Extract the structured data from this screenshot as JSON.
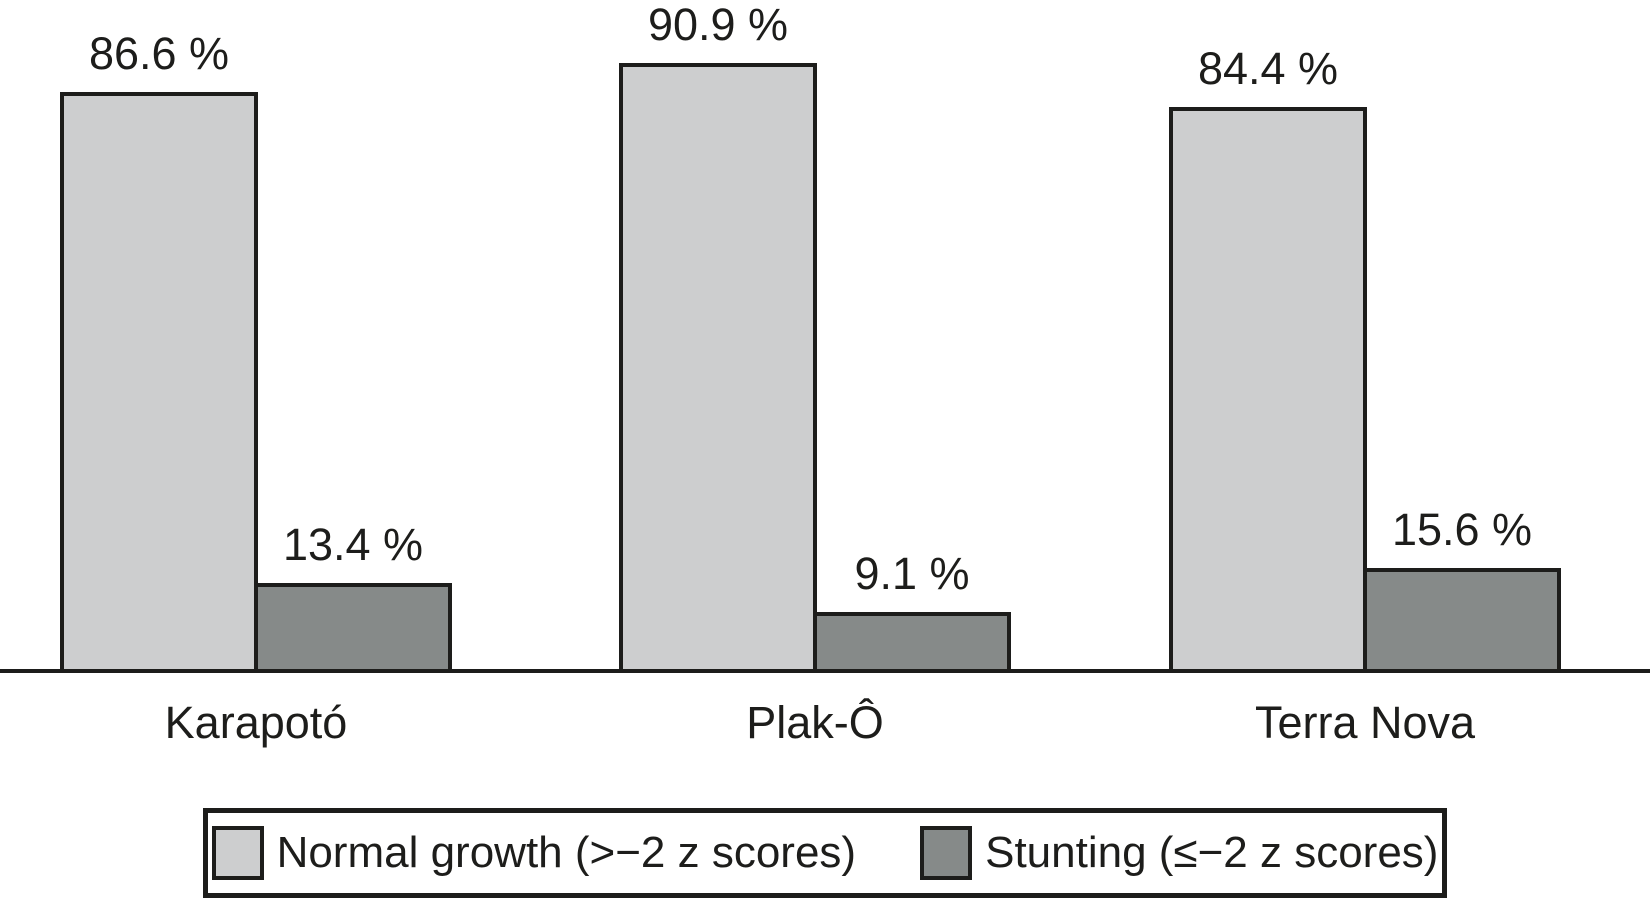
{
  "chart_data": {
    "type": "bar",
    "title": "",
    "xlabel": "",
    "ylabel": "",
    "ylim": [
      0,
      100
    ],
    "grid": false,
    "legend_position": "bottom",
    "categories": [
      "Karapotó",
      "Plak-Ô",
      "Terra Nova"
    ],
    "series": [
      {
        "name": "Normal growth (>−2 z scores)",
        "values": [
          86.6,
          90.9,
          84.4
        ],
        "labels": [
          "86.6 %",
          "90.9 %",
          "84.4 %"
        ],
        "color": "#cdcecf"
      },
      {
        "name": "Stunting (≤−2 z scores)",
        "values": [
          13.4,
          9.1,
          15.6
        ],
        "labels": [
          "13.4 %",
          "9.1 %",
          "15.6 %"
        ],
        "color": "#868a89"
      }
    ]
  },
  "legend": {
    "items": [
      {
        "label": "Normal growth (>−2 z scores)",
        "color": "#cdcecf"
      },
      {
        "label": "Stunting (≤−2 z scores)",
        "color": "#868a89"
      }
    ]
  },
  "colors": {
    "bar_border": "#1d1d1b",
    "axis_line": "#1d1d1b",
    "text": "#1d1d1b",
    "background": "#ffffff"
  }
}
